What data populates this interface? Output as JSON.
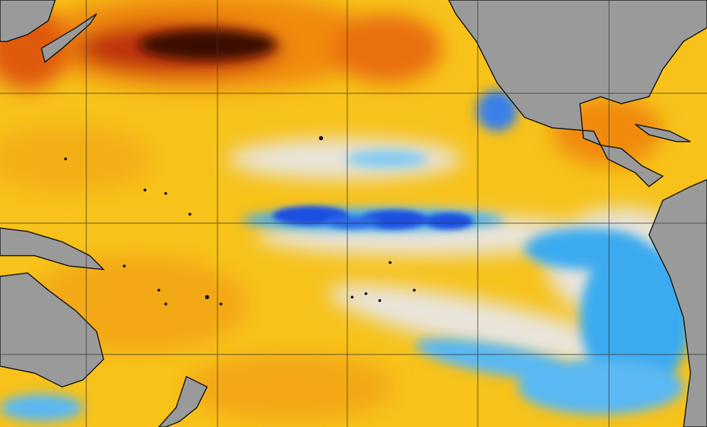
{
  "map": {
    "colors": {
      "ocean_warm": "#f7c21a",
      "ocean_hot": "#f08a10",
      "ocean_very_hot": "#c0300a",
      "ocean_extreme": "#3a0a05",
      "ocean_neutral": "#e8e4dc",
      "ocean_cool": "#3aaaf0",
      "ocean_cold": "#1a50e0",
      "land": "#9a9a9a",
      "grid": "#333333",
      "coastline": "#111111"
    },
    "graticule": true
  }
}
